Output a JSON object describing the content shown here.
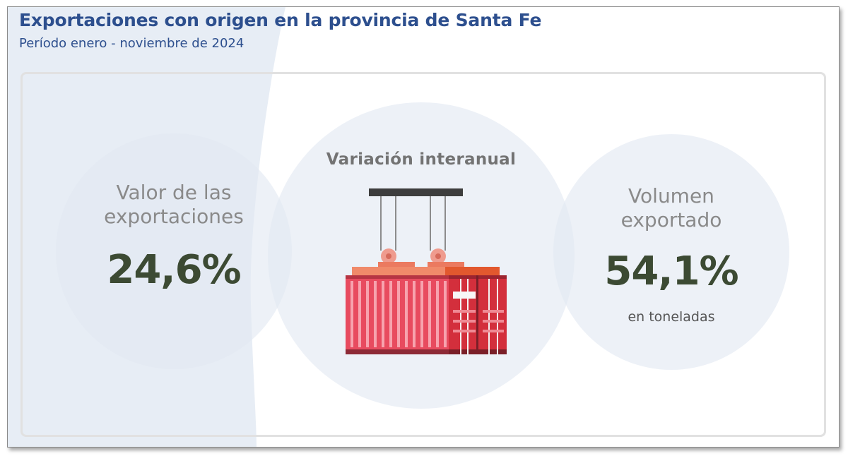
{
  "header": {
    "title": "Exportaciones con origen en la provincia de Santa Fe",
    "subtitle": "Período enero - noviembre de 2024"
  },
  "cards": {
    "value": {
      "label_line1": "Valor de las",
      "label_line2": "exportaciones",
      "figure": "24,6%"
    },
    "center": {
      "label": "Variación interanual",
      "icon": "shipping-container-icon"
    },
    "volume": {
      "label_line1": "Volumen",
      "label_line2": "exportado",
      "figure": "54,1%",
      "unit": "en toneladas"
    }
  },
  "colors": {
    "title": "#2d4f8e",
    "figure": "#3c4a33",
    "circle": "#e2e9f2",
    "container_red": "#e84b5f",
    "container_dark": "#d32f3c",
    "container_orange": "#e2582e"
  }
}
